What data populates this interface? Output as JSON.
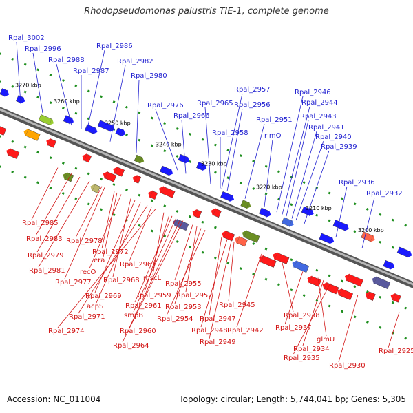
{
  "title": "Rhodopseudomonas palustris TIE-1, complete genome",
  "footer": {
    "accession": "Accession: NC_011004",
    "summary": "Topology: circular; Length: 5,744,041 bp; Genes: 5,305"
  },
  "colors": {
    "backbone": "#8a8a8a",
    "forward_label": "#1f1fd0",
    "reverse_label": "#d21414",
    "tick": "#1f8f1f"
  },
  "scale_ticks": [
    {
      "label": "3270 kbp"
    },
    {
      "label": "3260 kbp"
    },
    {
      "label": "3250 kbp"
    },
    {
      "label": "3240 kbp"
    },
    {
      "label": "3230 kbp"
    },
    {
      "label": "3220 kbp"
    },
    {
      "label": "3210 kbp"
    },
    {
      "label": "3200 kbp"
    }
  ],
  "forward_labels": [
    "Rpal_3002",
    "Rpal_2996",
    "Rpal_2988",
    "Rpal_2987",
    "Rpal_2986",
    "Rpal_2982",
    "Rpal_2980",
    "Rpal_2976",
    "Rpal_2966",
    "Rpal_2965",
    "Rpal_2957",
    "Rpal_2956",
    "Rpal_2958",
    "Rpal_2951",
    "rimO",
    "Rpal_2946",
    "Rpal_2944",
    "Rpal_2943",
    "Rpal_2941",
    "Rpal_2940",
    "Rpal_2939",
    "Rpal_2936",
    "Rpal_2932"
  ],
  "reverse_labels": [
    "Rpal_2985",
    "Rpal_2983",
    "Rpal_2979",
    "Rpal_2981",
    "Rpal_2978",
    "Rpal_2977",
    "Rpal_2972",
    "era",
    "recO",
    "Rpal_2968",
    "Rpal_2969",
    "acpS",
    "Rpal_2971",
    "Rpal_2974",
    "Rpal_2967",
    "mscL",
    "Rpal_2959",
    "Rpal_2961",
    "smpB",
    "Rpal_2960",
    "Rpal_2964",
    "Rpal_2955",
    "Rpal_2952",
    "Rpal_2953",
    "Rpal_2954",
    "Rpal_2945",
    "Rpal_2947",
    "Rpal_2948",
    "Rpal_2949",
    "Rpal_2942",
    "Rpal_2938",
    "Rpal_2937",
    "glmU",
    "Rpal_2934",
    "Rpal_2935",
    "Rpal_2930",
    "Rpal_2925"
  ]
}
